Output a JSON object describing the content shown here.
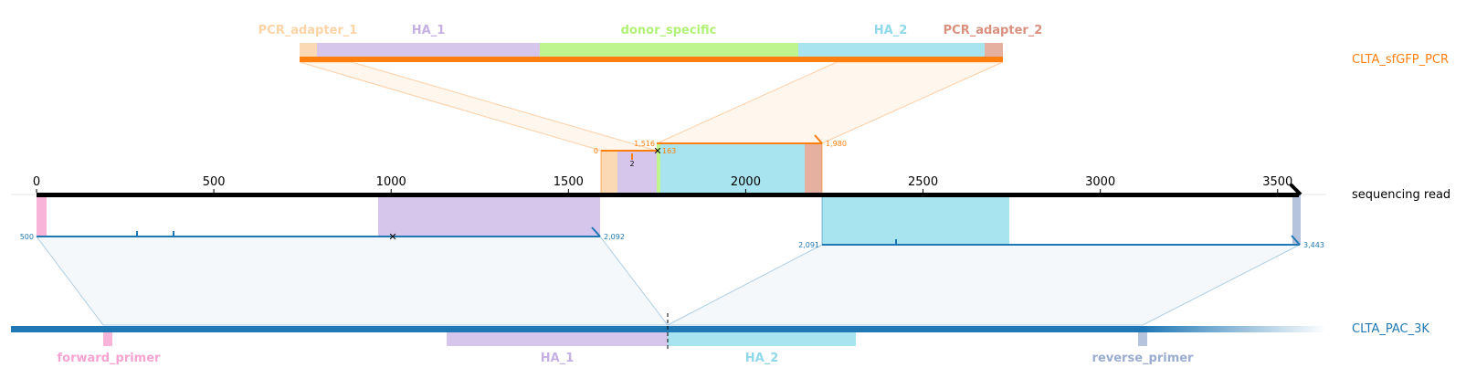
{
  "tracks": {
    "pcr": {
      "label": "CLTA_sfGFP_PCR",
      "color": "#ff7f0e"
    },
    "read": {
      "label": "sequencing read",
      "color": "#000000"
    },
    "genome": {
      "label": "CLTA_PAC_3K",
      "color": "#1f77b4"
    }
  },
  "pcr_features": [
    {
      "name": "PCR_adapter_1",
      "color": "#fbd9b5"
    },
    {
      "name": "HA_1",
      "color": "#d6c6ec"
    },
    {
      "name": "donor_specific",
      "color": "#bff58f"
    },
    {
      "name": "HA_2",
      "color": "#a8e4ef"
    },
    {
      "name": "PCR_adapter_2",
      "color": "#e5b09f"
    }
  ],
  "pcr_label_colors": [
    "#fbd3a5",
    "#c5b0e3",
    "#b0f276",
    "#8fd9ea",
    "#d9907e"
  ],
  "read_axis": {
    "ticks": [
      0,
      500,
      1000,
      1500,
      2000,
      2500,
      3000,
      3500
    ],
    "length": 3565
  },
  "pcr_alignment": {
    "labels": [
      "0",
      "1,516",
      "163",
      "2",
      "1,980"
    ]
  },
  "genome_alignments": {
    "left": {
      "start_label": "500",
      "end_label": "2,092"
    },
    "right": {
      "start_label": "2,091",
      "end_label": "3,443"
    }
  },
  "genome_features": [
    {
      "name": "forward_primer",
      "color": "#f8b4d9"
    },
    {
      "name": "HA_1",
      "color": "#d6c6ec"
    },
    {
      "name": "HA_2",
      "color": "#a8e4ef"
    },
    {
      "name": "reverse_primer",
      "color": "#b5c3dd"
    }
  ],
  "genome_label_colors": [
    "#f6a3d2",
    "#c5b0e3",
    "#8fd9ea",
    "#9aadd0"
  ]
}
